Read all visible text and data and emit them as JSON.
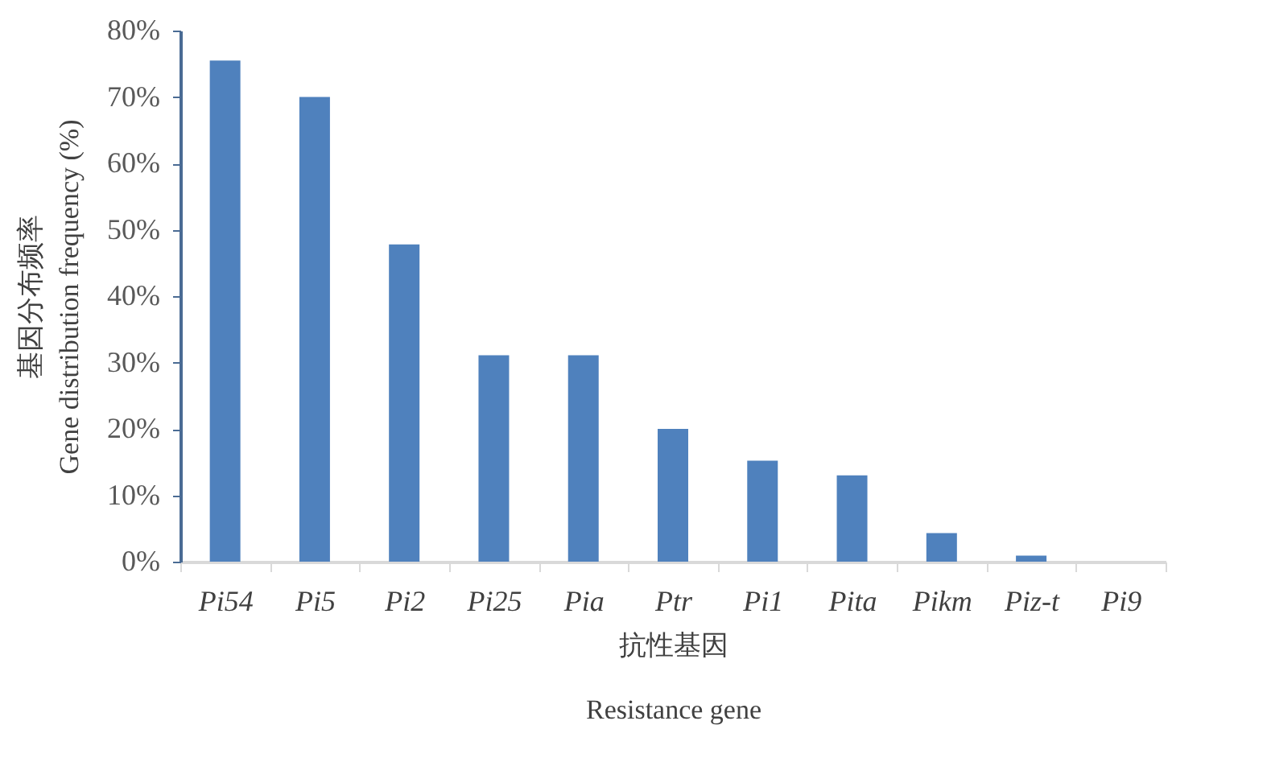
{
  "chart_data": {
    "type": "bar",
    "xlabel": "抗性基因\nResistance gene",
    "ylabel": "基因分布频率\nGene distribution frequency (%)",
    "categories": [
      "Pi54",
      "Pi5",
      "Pi2",
      "Pi25",
      "Pia",
      "Ptr",
      "Pi1",
      "Pita",
      "Pikm",
      "Piz-t",
      "Pi9"
    ],
    "values": [
      75.5,
      70,
      47.8,
      31.1,
      31.1,
      20,
      15.2,
      13,
      4.3,
      0.9,
      0
    ],
    "color": "#4f81bd",
    "ylim": [
      0,
      80
    ],
    "yticks": [
      {
        "value": 0,
        "label": "0%"
      },
      {
        "value": 10,
        "label": "10%"
      },
      {
        "value": 20,
        "label": "20%"
      },
      {
        "value": 30,
        "label": "30%"
      },
      {
        "value": 40,
        "label": "40%"
      },
      {
        "value": 50,
        "label": "50%"
      },
      {
        "value": 60,
        "label": "60%"
      },
      {
        "value": 70,
        "label": "70%"
      },
      {
        "value": 80,
        "label": "80%"
      }
    ],
    "grid": false
  }
}
